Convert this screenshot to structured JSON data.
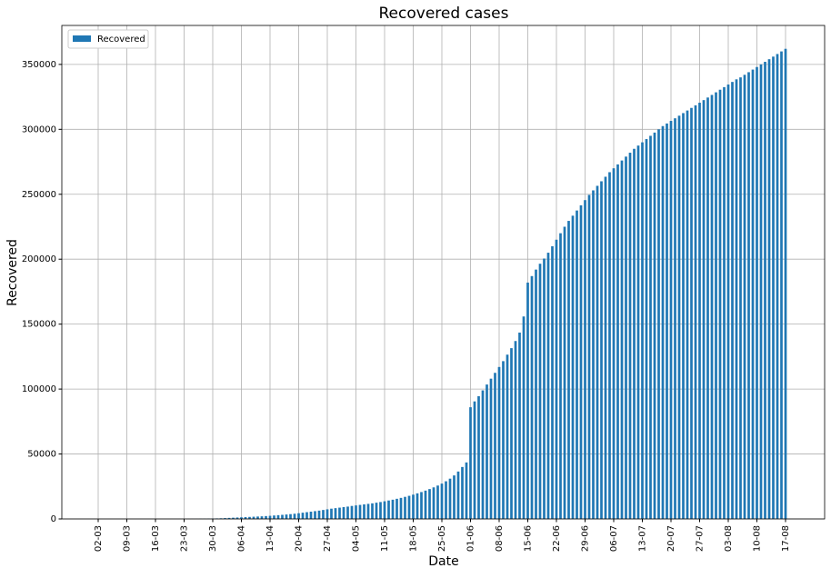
{
  "chart_data": {
    "type": "bar",
    "title": "Recovered cases",
    "x_label": "Date",
    "y_label": "Recovered",
    "categories": [
      "02-03",
      null,
      null,
      null,
      null,
      null,
      null,
      "09-03",
      null,
      null,
      null,
      null,
      null,
      null,
      "16-03",
      null,
      null,
      null,
      null,
      null,
      null,
      "23-03",
      null,
      null,
      null,
      null,
      null,
      null,
      "30-03",
      null,
      null,
      null,
      null,
      null,
      null,
      "06-04",
      null,
      null,
      null,
      null,
      null,
      null,
      "13-04",
      null,
      null,
      null,
      null,
      null,
      null,
      "20-04",
      null,
      null,
      null,
      null,
      null,
      null,
      "27-04",
      null,
      null,
      null,
      null,
      null,
      null,
      "04-05",
      null,
      null,
      null,
      null,
      null,
      null,
      "11-05",
      null,
      null,
      null,
      null,
      null,
      null,
      "18-05",
      null,
      null,
      null,
      null,
      null,
      null,
      "25-05",
      null,
      null,
      null,
      null,
      null,
      null,
      "01-06",
      null,
      null,
      null,
      null,
      null,
      null,
      "08-06",
      null,
      null,
      null,
      null,
      null,
      null,
      "15-06",
      null,
      null,
      null,
      null,
      null,
      null,
      "22-06",
      null,
      null,
      null,
      null,
      null,
      null,
      "29-06",
      null,
      null,
      null,
      null,
      null,
      null,
      "06-07",
      null,
      null,
      null,
      null,
      null,
      null,
      "13-07",
      null,
      null,
      null,
      null,
      null,
      null,
      "20-07",
      null,
      null,
      null,
      null,
      null,
      null,
      "27-07",
      null,
      null,
      null,
      null,
      null,
      null,
      "03-08",
      null,
      null,
      null,
      null,
      null,
      null,
      "10-08",
      null,
      null,
      null,
      null,
      null,
      null,
      "17-08"
    ],
    "series": [
      {
        "name": "Recovered",
        "color": "#1f77b4",
        "values": [
          0,
          0,
          0,
          0,
          0,
          0,
          0,
          0,
          0,
          1,
          1,
          1,
          1,
          1,
          3,
          3,
          5,
          5,
          10,
          15,
          20,
          30,
          40,
          60,
          80,
          120,
          160,
          220,
          300,
          400,
          500,
          650,
          800,
          950,
          1100,
          1250,
          1400,
          1550,
          1700,
          1850,
          2000,
          2200,
          2400,
          2650,
          2900,
          3150,
          3400,
          3700,
          4000,
          4400,
          4800,
          5200,
          5600,
          6000,
          6400,
          6900,
          7400,
          7900,
          8300,
          8700,
          9100,
          9500,
          10000,
          10400,
          10800,
          11200,
          11600,
          12000,
          12500,
          13000,
          13600,
          14200,
          14800,
          15500,
          16200,
          17000,
          17800,
          18700,
          19700,
          20700,
          21800,
          23000,
          24300,
          25700,
          27200,
          29000,
          31000,
          33500,
          36500,
          40000,
          43500,
          86000,
          90500,
          94500,
          99000,
          103500,
          108000,
          112500,
          117000,
          121500,
          126500,
          131500,
          137000,
          143500,
          155900,
          182000,
          187000,
          192000,
          196500,
          200500,
          205000,
          210000,
          215000,
          220000,
          225000,
          229500,
          233500,
          237500,
          241500,
          245500,
          249500,
          253000,
          256500,
          260000,
          263500,
          267000,
          270000,
          273000,
          276000,
          279000,
          282000,
          285000,
          287500,
          290000,
          292500,
          295000,
          297500,
          300000,
          302500,
          304500,
          306500,
          308500,
          310500,
          312500,
          314500,
          316500,
          318500,
          320500,
          322500,
          324500,
          326500,
          328500,
          330500,
          332500,
          334500,
          336500,
          338500,
          340000,
          342000,
          344000,
          346000,
          348000,
          350000,
          352000,
          354000,
          356000,
          358000,
          360000,
          362000
        ]
      }
    ],
    "ylim": [
      0,
      380000
    ],
    "yticks": [
      0,
      50000,
      100000,
      150000,
      200000,
      250000,
      300000,
      350000
    ],
    "grid": true,
    "legend": "upper-left"
  }
}
